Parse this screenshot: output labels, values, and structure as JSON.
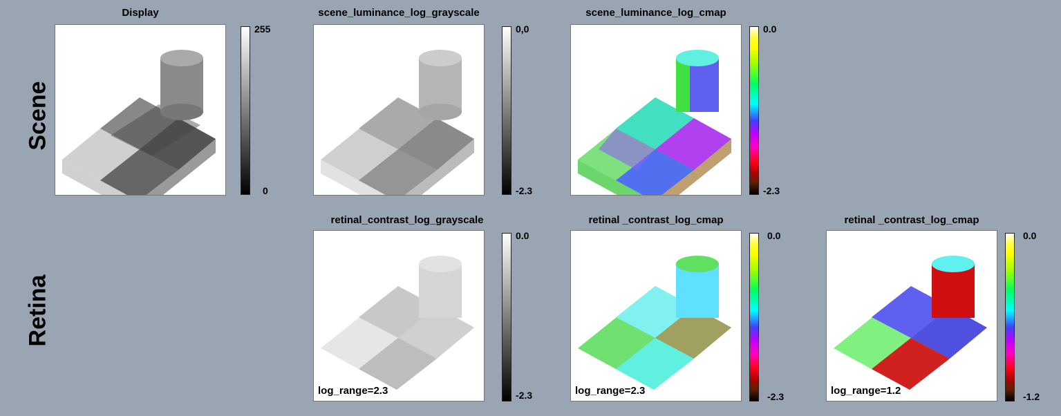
{
  "rows": {
    "scene": "Scene",
    "retina": "Retina"
  },
  "panels": {
    "display": {
      "title": "Display",
      "top_tick": "255",
      "bottom_tick": "0"
    },
    "scene_gray": {
      "title": "scene_luminance_log_grayscale",
      "top_tick": "0,0",
      "bottom_tick": "-2.3"
    },
    "scene_cmap": {
      "title": "scene_luminance_log_cmap",
      "top_tick": "0.0",
      "bottom_tick": "-2.3"
    },
    "retina_gray": {
      "title": "retinal_contrast_log_grayscale",
      "top_tick": "0.0",
      "bottom_tick": "-2.3",
      "range": "log_range=2.3"
    },
    "retina_cmap": {
      "title": "retinal _contrast_log_cmap",
      "top_tick": "0.0",
      "bottom_tick": "-2.3",
      "range": "log_range=2.3"
    },
    "retina_cmap2": {
      "title": "retinal _contrast_log_cmap",
      "top_tick": "0.0",
      "bottom_tick": "-1.2",
      "range": "log_range=1.2"
    }
  }
}
